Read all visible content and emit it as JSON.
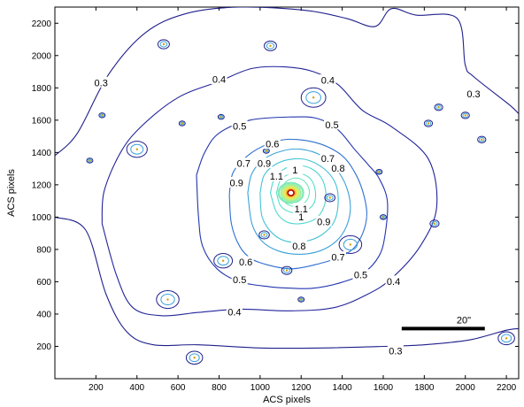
{
  "chart_data": {
    "type": "contour",
    "xlabel": "ACS pixels",
    "ylabel": "ACS pixels",
    "xlim": [
      0,
      2260
    ],
    "ylim": [
      0,
      2300
    ],
    "xticks": [
      200,
      400,
      600,
      800,
      1000,
      1200,
      1400,
      1600,
      1800,
      2000,
      2200
    ],
    "yticks": [
      200,
      400,
      600,
      800,
      1000,
      1200,
      1400,
      1600,
      1800,
      2000,
      2200
    ],
    "xtick_labels": [
      "200",
      "400",
      "600",
      "800",
      "1000",
      "1200",
      "1400",
      "1600",
      "1800",
      "2000",
      "2200"
    ],
    "ytick_labels": [
      "200",
      "400",
      "600",
      "800",
      "1000",
      "1200",
      "1400",
      "1600",
      "1800",
      "2000",
      "2200"
    ],
    "peak": {
      "x": 1150,
      "y": 1150
    },
    "contours": [
      {
        "level": 0.3,
        "color": "#1f1f8c",
        "points": [
          [
            0,
            1380
          ],
          [
            110,
            1520
          ],
          [
            260,
            1880
          ],
          [
            440,
            2140
          ],
          [
            640,
            2260
          ],
          [
            900,
            2300
          ],
          [
            1220,
            2280
          ],
          [
            1420,
            2230
          ],
          [
            1560,
            2180
          ],
          [
            1640,
            2290
          ],
          [
            1760,
            2250
          ],
          [
            1960,
            2230
          ],
          [
            2000,
            1940
          ],
          [
            2040,
            1870
          ],
          [
            2210,
            1700
          ],
          [
            2260,
            1640
          ]
        ],
        "labels": [
          {
            "text": "0.3",
            "x": 225,
            "y": 1830
          },
          {
            "text": "0.3",
            "x": 2040,
            "y": 1760
          }
        ]
      },
      {
        "level": 0.3,
        "color": "#1f1f8c",
        "points": [
          [
            0,
            1000
          ],
          [
            150,
            920
          ],
          [
            250,
            520
          ],
          [
            350,
            290
          ],
          [
            480,
            210
          ],
          [
            700,
            210
          ],
          [
            1000,
            190
          ],
          [
            1300,
            190
          ],
          [
            1600,
            200
          ],
          [
            1800,
            210
          ],
          [
            2020,
            240
          ],
          [
            2200,
            300
          ],
          [
            2260,
            310
          ]
        ],
        "labels": [
          {
            "text": "0.3",
            "x": 1660,
            "y": 170
          }
        ]
      },
      {
        "level": 0.4,
        "color": "#22249a",
        "points": [
          [
            230,
            960
          ],
          [
            240,
            1160
          ],
          [
            320,
            1400
          ],
          [
            420,
            1560
          ],
          [
            600,
            1740
          ],
          [
            800,
            1840
          ],
          [
            960,
            1920
          ],
          [
            1120,
            1930
          ],
          [
            1260,
            1900
          ],
          [
            1380,
            1820
          ],
          [
            1500,
            1660
          ],
          [
            1640,
            1560
          ],
          [
            1820,
            1360
          ],
          [
            1860,
            1060
          ],
          [
            1780,
            820
          ],
          [
            1640,
            620
          ],
          [
            1520,
            520
          ],
          [
            1360,
            440
          ],
          [
            1150,
            420
          ],
          [
            900,
            430
          ],
          [
            700,
            410
          ],
          [
            520,
            390
          ],
          [
            380,
            440
          ],
          [
            300,
            640
          ],
          [
            230,
            960
          ]
        ],
        "labels": [
          {
            "text": "0.4",
            "x": 800,
            "y": 1850
          },
          {
            "text": "0.4",
            "x": 1330,
            "y": 1845
          },
          {
            "text": "0.4",
            "x": 1650,
            "y": 600
          },
          {
            "text": "0.4",
            "x": 875,
            "y": 410
          }
        ]
      },
      {
        "level": 0.5,
        "color": "#2336ae",
        "points": [
          [
            690,
            1260
          ],
          [
            730,
            1400
          ],
          [
            800,
            1520
          ],
          [
            950,
            1600
          ],
          [
            1150,
            1620
          ],
          [
            1280,
            1610
          ],
          [
            1380,
            1540
          ],
          [
            1460,
            1420
          ],
          [
            1530,
            1320
          ],
          [
            1580,
            1240
          ],
          [
            1620,
            1100
          ],
          [
            1610,
            900
          ],
          [
            1580,
            760
          ],
          [
            1500,
            650
          ],
          [
            1380,
            590
          ],
          [
            1260,
            560
          ],
          [
            1150,
            560
          ],
          [
            1040,
            570
          ],
          [
            900,
            600
          ],
          [
            790,
            680
          ],
          [
            720,
            820
          ],
          [
            700,
            1000
          ],
          [
            690,
            1260
          ]
        ],
        "labels": [
          {
            "text": "0.5",
            "x": 900,
            "y": 1560
          },
          {
            "text": "0.5",
            "x": 1350,
            "y": 1570
          },
          {
            "text": "0.5",
            "x": 1490,
            "y": 640
          },
          {
            "text": "0.5",
            "x": 900,
            "y": 610
          }
        ]
      },
      {
        "level": 0.6,
        "color": "#2f6fd0",
        "points": [
          [
            850,
            1140
          ],
          [
            870,
            1280
          ],
          [
            960,
            1400
          ],
          [
            1080,
            1470
          ],
          [
            1180,
            1480
          ],
          [
            1300,
            1450
          ],
          [
            1400,
            1380
          ],
          [
            1460,
            1280
          ],
          [
            1500,
            1160
          ],
          [
            1520,
            1020
          ],
          [
            1500,
            900
          ],
          [
            1450,
            800
          ],
          [
            1360,
            740
          ],
          [
            1250,
            700
          ],
          [
            1150,
            680
          ],
          [
            1050,
            700
          ],
          [
            960,
            740
          ],
          [
            900,
            820
          ],
          [
            860,
            960
          ],
          [
            850,
            1140
          ]
        ],
        "labels": [
          {
            "text": "0.6",
            "x": 1060,
            "y": 1450
          },
          {
            "text": "0.6",
            "x": 930,
            "y": 720
          }
        ]
      },
      {
        "level": 0.7,
        "color": "#3aa1d8",
        "points": [
          [
            940,
            1150
          ],
          [
            960,
            1270
          ],
          [
            1020,
            1360
          ],
          [
            1110,
            1410
          ],
          [
            1200,
            1420
          ],
          [
            1300,
            1380
          ],
          [
            1370,
            1300
          ],
          [
            1420,
            1190
          ],
          [
            1440,
            1060
          ],
          [
            1420,
            940
          ],
          [
            1370,
            850
          ],
          [
            1290,
            790
          ],
          [
            1190,
            770
          ],
          [
            1090,
            790
          ],
          [
            1010,
            850
          ],
          [
            960,
            960
          ],
          [
            940,
            1150
          ]
        ],
        "labels": [
          {
            "text": "0.7",
            "x": 920,
            "y": 1330
          },
          {
            "text": "0.7",
            "x": 1330,
            "y": 1360
          },
          {
            "text": "0.7",
            "x": 1380,
            "y": 750
          }
        ]
      },
      {
        "level": 0.8,
        "color": "#43c2d6",
        "points": [
          [
            1000,
            1150
          ],
          [
            1020,
            1260
          ],
          [
            1080,
            1330
          ],
          [
            1160,
            1360
          ],
          [
            1240,
            1350
          ],
          [
            1320,
            1290
          ],
          [
            1370,
            1200
          ],
          [
            1380,
            1080
          ],
          [
            1360,
            970
          ],
          [
            1300,
            890
          ],
          [
            1220,
            850
          ],
          [
            1130,
            850
          ],
          [
            1060,
            900
          ],
          [
            1010,
            1000
          ],
          [
            1000,
            1150
          ]
        ],
        "labels": [
          {
            "text": "0.8",
            "x": 1380,
            "y": 1300
          },
          {
            "text": "0.8",
            "x": 1190,
            "y": 820
          }
        ]
      },
      {
        "level": 0.9,
        "color": "#4dd6cf",
        "points": [
          [
            1050,
            1150
          ],
          [
            1070,
            1240
          ],
          [
            1120,
            1300
          ],
          [
            1180,
            1320
          ],
          [
            1250,
            1300
          ],
          [
            1300,
            1240
          ],
          [
            1320,
            1150
          ],
          [
            1310,
            1060
          ],
          [
            1270,
            990
          ],
          [
            1200,
            960
          ],
          [
            1130,
            970
          ],
          [
            1080,
            1030
          ],
          [
            1050,
            1150
          ]
        ],
        "labels": [
          {
            "text": "0.9",
            "x": 1020,
            "y": 1330
          },
          {
            "text": "0.9",
            "x": 885,
            "y": 1210
          },
          {
            "text": "0.9",
            "x": 1310,
            "y": 970
          }
        ]
      },
      {
        "level": 1.0,
        "color": "#58dfc9",
        "points": [
          [
            1080,
            1150
          ],
          [
            1100,
            1230
          ],
          [
            1150,
            1270
          ],
          [
            1200,
            1270
          ],
          [
            1250,
            1230
          ],
          [
            1270,
            1150
          ],
          [
            1260,
            1080
          ],
          [
            1210,
            1030
          ],
          [
            1150,
            1030
          ],
          [
            1100,
            1070
          ],
          [
            1080,
            1150
          ]
        ],
        "labels": [
          {
            "text": "1",
            "x": 1170,
            "y": 1290
          },
          {
            "text": "1",
            "x": 1200,
            "y": 1000
          }
        ]
      },
      {
        "level": 1.1,
        "color": "#6fe6c0",
        "points": [
          [
            1100,
            1150
          ],
          [
            1120,
            1210
          ],
          [
            1160,
            1240
          ],
          [
            1200,
            1235
          ],
          [
            1230,
            1200
          ],
          [
            1240,
            1150
          ],
          [
            1225,
            1100
          ],
          [
            1190,
            1070
          ],
          [
            1150,
            1070
          ],
          [
            1115,
            1100
          ],
          [
            1100,
            1150
          ]
        ],
        "labels": [
          {
            "text": "1.1",
            "x": 1080,
            "y": 1250
          },
          {
            "text": "1.1",
            "x": 1200,
            "y": 1050
          }
        ]
      }
    ],
    "core_rings": [
      {
        "rx": 60,
        "ry": 62,
        "color": "#7fe8b8"
      },
      {
        "rx": 48,
        "ry": 50,
        "color": "#9ff0a0"
      },
      {
        "rx": 38,
        "ry": 40,
        "color": "#c8f078"
      },
      {
        "rx": 28,
        "ry": 30,
        "color": "#f0e050"
      },
      {
        "rx": 20,
        "ry": 22,
        "color": "#f5b030"
      },
      {
        "rx": 14,
        "ry": 15,
        "color": "#ee5020"
      },
      {
        "rx": 9,
        "ry": 10,
        "color": "#cc1010"
      }
    ],
    "sources": [
      {
        "x": 1260,
        "y": 1740,
        "r": 60
      },
      {
        "x": 400,
        "y": 1420,
        "r": 50
      },
      {
        "x": 1440,
        "y": 830,
        "r": 55
      },
      {
        "x": 1050,
        "y": 2060,
        "r": 30
      },
      {
        "x": 530,
        "y": 2070,
        "r": 28
      },
      {
        "x": 550,
        "y": 490,
        "r": 55
      },
      {
        "x": 820,
        "y": 730,
        "r": 45
      },
      {
        "x": 1340,
        "y": 1120,
        "r": 25
      },
      {
        "x": 1020,
        "y": 890,
        "r": 25
      },
      {
        "x": 1130,
        "y": 670,
        "r": 25
      },
      {
        "x": 1820,
        "y": 1580,
        "r": 20
      },
      {
        "x": 2000,
        "y": 1630,
        "r": 20
      },
      {
        "x": 2080,
        "y": 1480,
        "r": 20
      },
      {
        "x": 1850,
        "y": 960,
        "r": 22
      },
      {
        "x": 1870,
        "y": 1680,
        "r": 20
      },
      {
        "x": 2200,
        "y": 250,
        "r": 40
      },
      {
        "x": 680,
        "y": 130,
        "r": 40
      },
      {
        "x": 230,
        "y": 1630,
        "r": 15
      },
      {
        "x": 170,
        "y": 1350,
        "r": 15
      },
      {
        "x": 620,
        "y": 1580,
        "r": 15
      },
      {
        "x": 810,
        "y": 1620,
        "r": 15
      },
      {
        "x": 1600,
        "y": 1000,
        "r": 15
      },
      {
        "x": 1580,
        "y": 1280,
        "r": 15
      },
      {
        "x": 1200,
        "y": 490,
        "r": 15
      },
      {
        "x": 1030,
        "y": 1410,
        "r": 15
      }
    ],
    "scalebar": {
      "x0": 1690,
      "x1": 2095,
      "y": 310,
      "label": "20\""
    }
  }
}
